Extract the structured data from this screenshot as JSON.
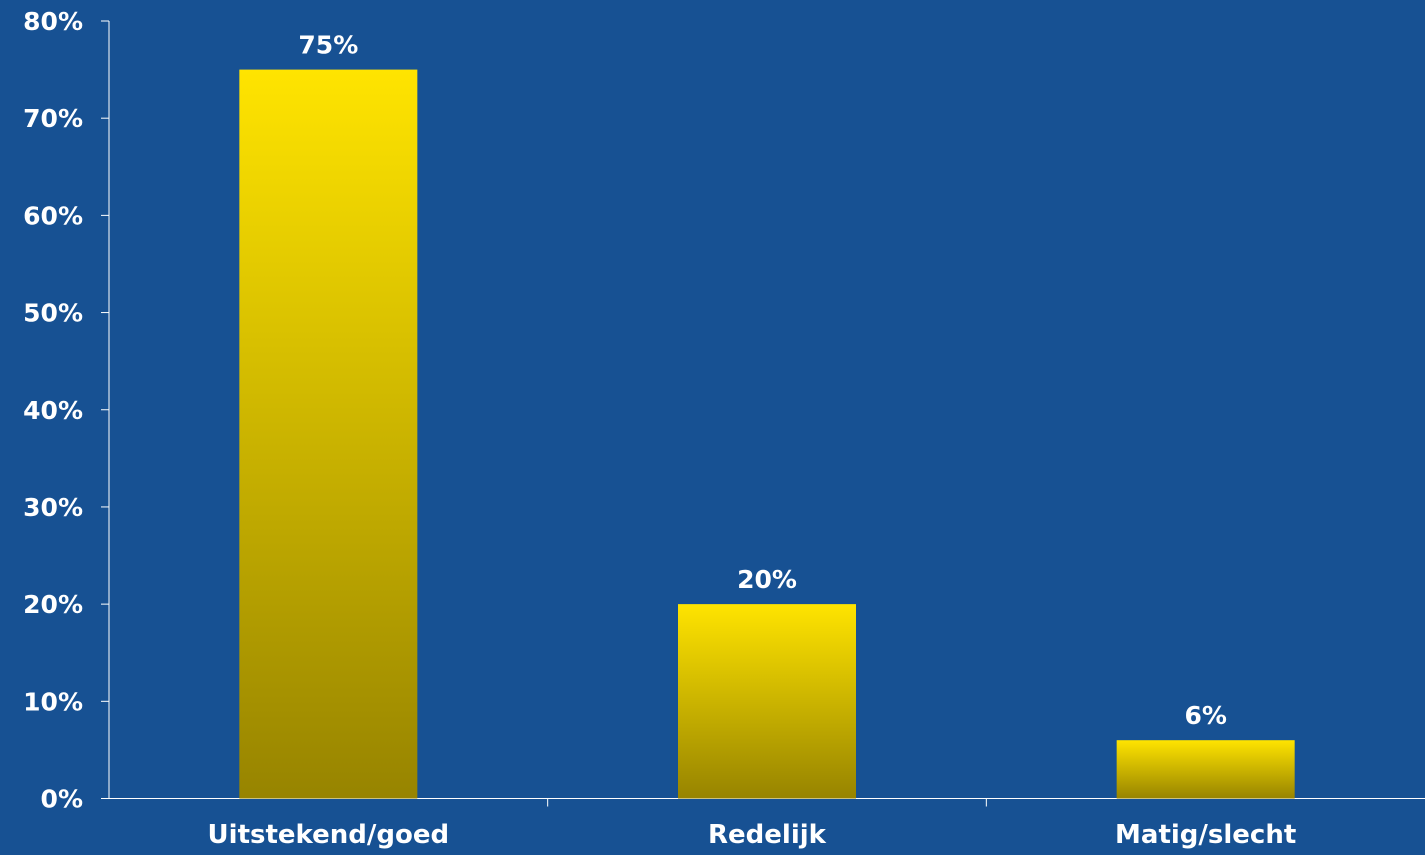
{
  "chart_data": {
    "type": "bar",
    "categories": [
      "Uitstekend/goed",
      "Redelijk",
      "Matig/slecht"
    ],
    "values": [
      75,
      20,
      6
    ],
    "data_labels": [
      "75%",
      "20%",
      "6%"
    ],
    "ylim": [
      0,
      80
    ],
    "yticks": [
      0,
      10,
      20,
      30,
      40,
      50,
      60,
      70,
      80
    ],
    "ytick_labels": [
      "0%",
      "10%",
      "20%",
      "30%",
      "40%",
      "50%",
      "60%",
      "70%",
      "80%"
    ],
    "grid": false,
    "legend": "none"
  },
  "colors": {
    "background": "#175193",
    "bar_top": "#ffe400",
    "bar_bottom": "#978400",
    "axis": "#ffffff",
    "text": "#ffffff"
  }
}
